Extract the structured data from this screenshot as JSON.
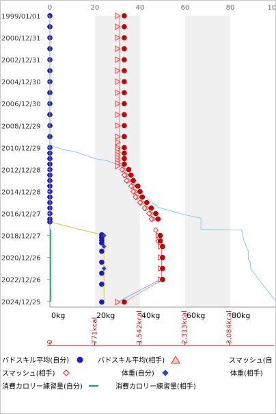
{
  "chart_data": {
    "type": "scatter",
    "orientation": "horizontal-values-vertical-dates",
    "top_axis": {
      "min": 0,
      "max": 100,
      "ticks": [
        0,
        20,
        40,
        60,
        80,
        100
      ],
      "tick_labels": [
        "0",
        "20",
        "40",
        "60",
        "80",
        "100"
      ]
    },
    "y_axis": {
      "type": "date",
      "min": "1999/01/01",
      "max": "2025/06/30",
      "tick_labels": [
        "1999/01/01",
        "2000/12/31",
        "2002/12/31",
        "2004/12/30",
        "2006/12/30",
        "2008/12/29",
        "2010/12/29",
        "2012/12/28",
        "2014/12/28",
        "2016/12/27",
        "2018/12/27",
        "2020/12/26",
        "2022/12/26",
        "2024/12/25"
      ]
    },
    "bottom_axis": {
      "min": 0,
      "max": 100,
      "ticks": [
        0,
        20,
        40,
        60,
        80
      ],
      "tick_labels": [
        "0kg",
        "20kg",
        "40kg",
        "60kg",
        "80kg"
      ]
    },
    "calorie_axis": {
      "tick_labels": [
        "0",
        "771kcal",
        "1,542kcal",
        "2,313kcal",
        "3,084kcal"
      ],
      "tick_fraction": [
        0,
        0.2,
        0.4,
        0.6,
        0.8
      ]
    },
    "grid": {
      "shaded_bands": [
        [
          20,
          40
        ],
        [
          60,
          80
        ]
      ]
    },
    "legend_position": "bottom",
    "colors": {
      "blue_dot": "#1c1cc8",
      "red_dot": "#cc0000",
      "smash_tri": "#ee4444",
      "weight_self": "#ee3333",
      "weight_opp": "#3344cc",
      "calorie_self": "#88ccee",
      "calorie_opp": "#00aa66",
      "mixed_line": "#cccc44"
    },
    "series": [
      {
        "name": "バドスキル平均(相手)",
        "marker": "circle",
        "color": "#1c1cc8",
        "points": [
          {
            "x": 0,
            "d": "1999/01/01"
          },
          {
            "x": 0,
            "d": "1999/12/31"
          },
          {
            "x": 0,
            "d": "2000/12/31"
          },
          {
            "x": 0,
            "d": "2001/12/31"
          },
          {
            "x": 0,
            "d": "2002/12/31"
          },
          {
            "x": 0,
            "d": "2003/12/31"
          },
          {
            "x": 0,
            "d": "2004/12/30"
          },
          {
            "x": 0,
            "d": "2005/12/30"
          },
          {
            "x": 0,
            "d": "2006/12/30"
          },
          {
            "x": 0,
            "d": "2007/12/30"
          },
          {
            "x": 0,
            "d": "2008/12/29"
          },
          {
            "x": 0,
            "d": "2009/12/29"
          },
          {
            "x": 0,
            "d": "2010/12/29"
          },
          {
            "x": 0,
            "d": "2011/06/30"
          },
          {
            "x": 0,
            "d": "2011/12/29"
          },
          {
            "x": 0,
            "d": "2012/06/28"
          },
          {
            "x": 0,
            "d": "2012/12/28"
          },
          {
            "x": 0,
            "d": "2013/06/28"
          },
          {
            "x": 0,
            "d": "2013/12/28"
          },
          {
            "x": 0,
            "d": "2014/06/28"
          },
          {
            "x": 0,
            "d": "2014/12/28"
          },
          {
            "x": 0,
            "d": "2015/06/28"
          },
          {
            "x": 0,
            "d": "2015/12/28"
          },
          {
            "x": 0,
            "d": "2016/06/27"
          },
          {
            "x": 0,
            "d": "2016/12/27"
          },
          {
            "x": 0,
            "d": "2017/06/27"
          },
          {
            "x": 0,
            "d": "2017/10/01"
          },
          {
            "x": 23,
            "d": "2018/12/01"
          },
          {
            "x": 23,
            "d": "2019/03/01"
          },
          {
            "x": 23,
            "d": "2019/06/01"
          },
          {
            "x": 23,
            "d": "2019/09/01"
          },
          {
            "x": 23,
            "d": "2020/06/01"
          },
          {
            "x": 23,
            "d": "2021/06/01"
          },
          {
            "x": 23,
            "d": "2022/06/01"
          },
          {
            "x": 23,
            "d": "2023/06/01"
          },
          {
            "x": 23,
            "d": "2025/01/15"
          }
        ]
      },
      {
        "name": "スマッシュ(自分)",
        "marker": "triangle-right",
        "color": "#ee4444",
        "points": [
          {
            "x": 30,
            "d": "1999/01/01"
          },
          {
            "x": 30,
            "d": "1999/12/31"
          },
          {
            "x": 30,
            "d": "2000/12/31"
          },
          {
            "x": 30,
            "d": "2001/12/31"
          },
          {
            "x": 30,
            "d": "2002/12/31"
          },
          {
            "x": 30,
            "d": "2003/12/31"
          },
          {
            "x": 30,
            "d": "2004/12/30"
          },
          {
            "x": 30,
            "d": "2005/12/30"
          },
          {
            "x": 30,
            "d": "2006/12/30"
          },
          {
            "x": 30,
            "d": "2007/12/30"
          },
          {
            "x": 30,
            "d": "2008/12/29"
          },
          {
            "x": 30,
            "d": "2009/12/29"
          },
          {
            "x": 30,
            "d": "2010/06/29"
          },
          {
            "x": 30,
            "d": "2010/12/29"
          },
          {
            "x": 30,
            "d": "2011/03/01"
          },
          {
            "x": 30,
            "d": "2011/06/01"
          },
          {
            "x": 30,
            "d": "2011/09/01"
          },
          {
            "x": 30,
            "d": "2011/12/01"
          },
          {
            "x": 30,
            "d": "2012/03/01"
          },
          {
            "x": 30,
            "d": "2012/06/01"
          },
          {
            "x": 30,
            "d": "2012/09/01"
          },
          {
            "x": 33,
            "d": "2012/12/28"
          },
          {
            "x": 34,
            "d": "2013/06/28"
          },
          {
            "x": 35,
            "d": "2013/12/28"
          },
          {
            "x": 37,
            "d": "2014/06/28"
          },
          {
            "x": 38,
            "d": "2014/12/28"
          },
          {
            "x": 39,
            "d": "2015/06/28"
          },
          {
            "x": 41,
            "d": "2015/12/28"
          },
          {
            "x": 43,
            "d": "2016/06/27"
          },
          {
            "x": 45,
            "d": "2016/12/27"
          },
          {
            "x": 46,
            "d": "2017/06/27"
          },
          {
            "x": 48,
            "d": "2018/12/27"
          },
          {
            "x": 49,
            "d": "2019/12/27"
          },
          {
            "x": 49,
            "d": "2020/12/26"
          },
          {
            "x": 49,
            "d": "2021/12/26"
          },
          {
            "x": 49,
            "d": "2022/12/26"
          },
          {
            "x": 30,
            "d": "2025/01/15"
          }
        ]
      },
      {
        "name": "スマッシュ(相手)",
        "marker": "diamond-open",
        "color": "#ee3333",
        "points": [
          {
            "x": 32,
            "d": "2012/12/28"
          },
          {
            "x": 33,
            "d": "2013/06/28"
          },
          {
            "x": 34,
            "d": "2013/12/28"
          },
          {
            "x": 36,
            "d": "2014/06/28"
          },
          {
            "x": 37,
            "d": "2014/12/28"
          },
          {
            "x": 38,
            "d": "2015/06/28"
          },
          {
            "x": 40,
            "d": "2015/12/28"
          },
          {
            "x": 42,
            "d": "2016/06/27"
          },
          {
            "x": 44,
            "d": "2016/12/27"
          },
          {
            "x": 45,
            "d": "2017/06/27"
          },
          {
            "x": 47,
            "d": "2018/06/27"
          },
          {
            "x": 48,
            "d": "2019/06/27"
          }
        ]
      },
      {
        "name": "体重(自分)",
        "marker": "circle-red",
        "color": "#cc0000",
        "points": [
          {
            "x": 33,
            "d": "1999/01/01"
          },
          {
            "x": 33,
            "d": "1999/12/31"
          },
          {
            "x": 33,
            "d": "2000/12/31"
          },
          {
            "x": 33,
            "d": "2001/12/31"
          },
          {
            "x": 33,
            "d": "2002/12/31"
          },
          {
            "x": 33,
            "d": "2003/12/31"
          },
          {
            "x": 33,
            "d": "2004/12/30"
          },
          {
            "x": 33,
            "d": "2005/12/30"
          },
          {
            "x": 33,
            "d": "2006/12/30"
          },
          {
            "x": 33,
            "d": "2007/12/30"
          },
          {
            "x": 33,
            "d": "2008/12/29"
          },
          {
            "x": 33,
            "d": "2009/12/29"
          },
          {
            "x": 33,
            "d": "2010/12/29"
          },
          {
            "x": 33,
            "d": "2011/06/30"
          },
          {
            "x": 33,
            "d": "2011/12/29"
          },
          {
            "x": 33,
            "d": "2012/06/28"
          },
          {
            "x": 35,
            "d": "2012/12/28"
          },
          {
            "x": 36,
            "d": "2013/06/28"
          },
          {
            "x": 37,
            "d": "2013/12/28"
          },
          {
            "x": 39,
            "d": "2014/06/28"
          },
          {
            "x": 40,
            "d": "2014/12/28"
          },
          {
            "x": 41,
            "d": "2015/06/28"
          },
          {
            "x": 43,
            "d": "2015/12/28"
          },
          {
            "x": 45,
            "d": "2016/06/27"
          },
          {
            "x": 47,
            "d": "2016/12/27"
          },
          {
            "x": 48,
            "d": "2017/06/27"
          },
          {
            "x": 49,
            "d": "2018/12/27"
          },
          {
            "x": 49,
            "d": "2019/06/27"
          },
          {
            "x": 50,
            "d": "2019/12/27"
          },
          {
            "x": 50,
            "d": "2020/12/26"
          },
          {
            "x": 50,
            "d": "2021/12/26"
          },
          {
            "x": 50,
            "d": "2022/12/26"
          },
          {
            "x": 33,
            "d": "2025/01/15"
          }
        ]
      },
      {
        "name": "体重(相手)",
        "marker": "diamond",
        "color": "#3344cc",
        "points": [
          {
            "x": 24,
            "d": "2018/12/27"
          },
          {
            "x": 24,
            "d": "2019/12/27"
          },
          {
            "x": 24,
            "d": "2021/12/26"
          }
        ]
      }
    ],
    "legend": [
      {
        "label": "バドスキル平均(自分)",
        "marker": "circle-blue"
      },
      {
        "label": "バドスキル平均(相手)",
        "marker": "triangle-red"
      },
      {
        "label": "スマッシュ(自",
        "marker": "none"
      },
      {
        "label": "スマッシュ(相手)",
        "marker": "diamond-red"
      },
      {
        "label": "体重(自分)",
        "marker": "diamond-blue"
      },
      {
        "label": "体重(相手)",
        "marker": "none"
      },
      {
        "label": "消費カロリー練習量(自分)",
        "marker": "line-green"
      },
      {
        "label": "消費カロリー練習量(相手)",
        "marker": "none"
      }
    ]
  }
}
